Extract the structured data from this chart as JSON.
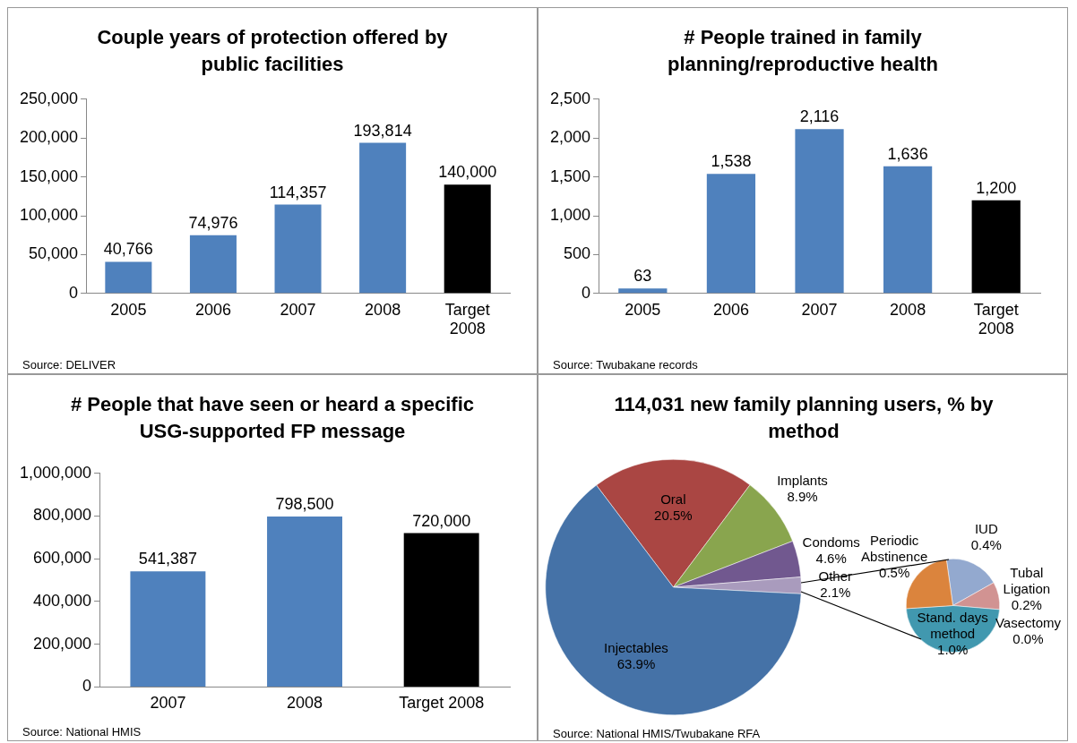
{
  "chart_data": [
    {
      "type": "bar",
      "title": "Couple years of protection offered by public facilities",
      "categories": [
        "2005",
        "2006",
        "2007",
        "2008",
        "Target 2008"
      ],
      "values": [
        40766,
        74976,
        114357,
        193814,
        140000
      ],
      "colors": [
        "#4f81bd",
        "#4f81bd",
        "#4f81bd",
        "#4f81bd",
        "#000000"
      ],
      "ylim": [
        0,
        250000
      ],
      "yticks": [
        {
          "value": 0,
          "label": "0"
        },
        {
          "value": 50000,
          "label": "50,000"
        },
        {
          "value": 100000,
          "label": "100,000"
        },
        {
          "value": 150000,
          "label": "150,000"
        },
        {
          "value": 200000,
          "label": "200,000"
        },
        {
          "value": 250000,
          "label": "250,000"
        }
      ],
      "value_labels": [
        "40,766",
        "74,976",
        "114,357",
        "193,814",
        "140,000"
      ],
      "annotations": [
        "Source: DELIVER"
      ]
    },
    {
      "type": "bar",
      "title": "# People trained in family planning/reproductive health",
      "categories": [
        "2005",
        "2006",
        "2007",
        "2008",
        "Target 2008"
      ],
      "values": [
        63,
        1538,
        2116,
        1636,
        1200
      ],
      "colors": [
        "#4f81bd",
        "#4f81bd",
        "#4f81bd",
        "#4f81bd",
        "#000000"
      ],
      "ylim": [
        0,
        2500
      ],
      "yticks": [
        {
          "value": 0,
          "label": "0"
        },
        {
          "value": 500,
          "label": "500"
        },
        {
          "value": 1000,
          "label": "1,000"
        },
        {
          "value": 1500,
          "label": "1,500"
        },
        {
          "value": 2000,
          "label": "2,000"
        },
        {
          "value": 2500,
          "label": "2,500"
        }
      ],
      "value_labels": [
        "63",
        "1,538",
        "2,116",
        "1,636",
        "1,200"
      ],
      "annotations": [
        "Source: Twubakane records"
      ]
    },
    {
      "type": "bar",
      "title": "# People that have seen or heard a specific USG-supported FP message",
      "categories": [
        "2007",
        "2008",
        "Target 2008"
      ],
      "values": [
        541387,
        798500,
        720000
      ],
      "colors": [
        "#4f81bd",
        "#4f81bd",
        "#000000"
      ],
      "ylim": [
        0,
        1000000
      ],
      "yticks": [
        {
          "value": 0,
          "label": "0"
        },
        {
          "value": 200000,
          "label": "200,000"
        },
        {
          "value": 400000,
          "label": "400,000"
        },
        {
          "value": 600000,
          "label": "600,000"
        },
        {
          "value": 800000,
          "label": "800,000"
        },
        {
          "value": 1000000,
          "label": "1,000,000"
        }
      ],
      "value_labels": [
        "541,387",
        "798,500",
        "720,000"
      ],
      "annotations": [
        "Source: National HMIS"
      ]
    },
    {
      "type": "pie",
      "title": "114,031 new family planning users, % by method",
      "categories": [
        "Oral",
        "Implants",
        "Condoms",
        "Other",
        "Injectables"
      ],
      "values": [
        20.5,
        8.9,
        4.6,
        2.1,
        63.9
      ],
      "colors": [
        "#aa4643",
        "#89a54e",
        "#71588f",
        "#a99bbd",
        "#4572a7"
      ],
      "value_labels": [
        "20.5%",
        "8.9%",
        "4.6%",
        "2.1%",
        "63.9%"
      ],
      "annotations": [
        "Source: National HMIS/Twubakane RFA"
      ]
    },
    {
      "type": "pie",
      "categories": [
        "IUD",
        "Tubal Ligation",
        "Vasectomy",
        "Stand. days method",
        "Periodic Abstinence"
      ],
      "values": [
        0.4,
        0.2,
        0.0,
        1.0,
        0.5
      ],
      "colors": [
        "#93a9cf",
        "#d19392",
        "#b9cd96",
        "#4198af",
        "#db843d"
      ],
      "value_labels": [
        "0.4%",
        "0.2%",
        "0.0%",
        "1.0%",
        "0.5%"
      ]
    }
  ]
}
